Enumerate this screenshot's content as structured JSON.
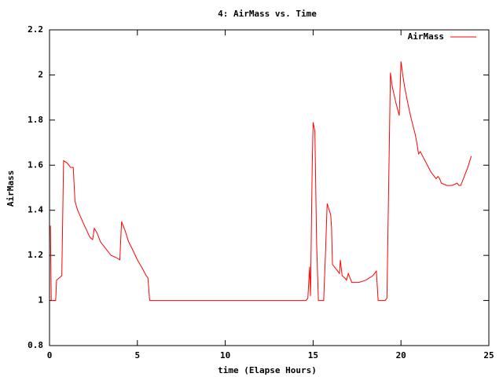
{
  "chart_data": {
    "type": "line",
    "title": "4: AirMass vs. Time",
    "x_label": "time (Elapse Hours)",
    "y_label": "AirMass",
    "x": [
      0,
      0.05,
      0.1,
      0.35,
      0.4,
      0.7,
      0.8,
      1.0,
      1.2,
      1.35,
      1.45,
      1.6,
      2.0,
      2.3,
      2.45,
      2.55,
      2.7,
      2.9,
      3.2,
      3.5,
      3.8,
      4.0,
      4.1,
      4.3,
      4.5,
      4.7,
      5.0,
      5.3,
      5.5,
      5.6,
      5.7,
      14.6,
      14.7,
      14.8,
      14.85,
      14.95,
      15.0,
      15.1,
      15.2,
      15.3,
      15.6,
      15.7,
      15.8,
      16.0,
      16.05,
      16.1,
      16.3,
      16.5,
      16.55,
      16.65,
      16.8,
      16.9,
      17.0,
      17.1,
      17.2,
      17.6,
      18.0,
      18.4,
      18.6,
      18.7,
      19.1,
      19.2,
      19.4,
      19.5,
      19.7,
      19.9,
      20.0,
      20.1,
      20.2,
      20.4,
      20.6,
      20.8,
      20.9,
      21.0,
      21.1,
      21.3,
      21.5,
      21.7,
      21.9,
      22.0,
      22.1,
      22.2,
      22.3,
      22.6,
      22.9,
      23.2,
      23.3,
      23.4,
      23.6,
      23.8,
      24.0
    ],
    "series": [
      {
        "name": "AirMass",
        "color": "#ff0000",
        "values": [
          1.33,
          1.33,
          1.0,
          1.0,
          1.09,
          1.11,
          1.62,
          1.61,
          1.59,
          1.59,
          1.44,
          1.4,
          1.33,
          1.28,
          1.27,
          1.32,
          1.3,
          1.26,
          1.23,
          1.2,
          1.19,
          1.18,
          1.35,
          1.31,
          1.26,
          1.23,
          1.18,
          1.14,
          1.11,
          1.1,
          1.0,
          1.0,
          1.01,
          1.15,
          1.02,
          1.6,
          1.79,
          1.75,
          1.25,
          1.0,
          1.0,
          1.2,
          1.43,
          1.38,
          1.32,
          1.16,
          1.14,
          1.12,
          1.18,
          1.11,
          1.1,
          1.09,
          1.12,
          1.1,
          1.08,
          1.08,
          1.09,
          1.11,
          1.13,
          1.0,
          1.0,
          1.01,
          2.01,
          1.95,
          1.88,
          1.82,
          2.06,
          2.0,
          1.95,
          1.87,
          1.8,
          1.74,
          1.7,
          1.65,
          1.66,
          1.63,
          1.6,
          1.57,
          1.55,
          1.54,
          1.55,
          1.54,
          1.52,
          1.51,
          1.51,
          1.52,
          1.51,
          1.51,
          1.55,
          1.59,
          1.64
        ]
      }
    ],
    "xlim": [
      0,
      25
    ],
    "xticks": [
      0,
      5,
      10,
      15,
      20,
      25
    ],
    "ylim": [
      0.8,
      2.2
    ],
    "yticks": [
      0.8,
      1,
      1.2,
      1.4,
      1.6,
      1.8,
      2,
      2.2
    ],
    "legend": "top-right"
  }
}
